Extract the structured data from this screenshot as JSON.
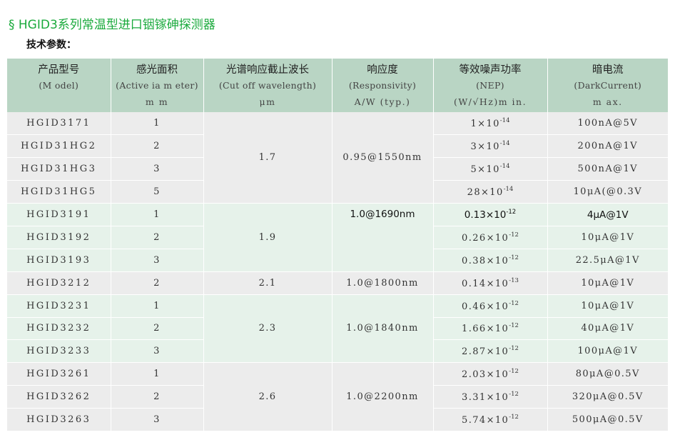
{
  "title": "§ HGID3系列常温型进口铟镓砷探测器",
  "subtitle": "技术参数：",
  "header": {
    "model": [
      "产品型号",
      "(M odel)",
      ""
    ],
    "area": [
      "感光面积",
      "(Active ia m eter)",
      "m m"
    ],
    "cutoff": [
      "光谱响应截止波长",
      "(Cut off wavelength)",
      "μm"
    ],
    "resp": [
      "响应度",
      "(Responsivity)",
      "A/W (typ.)"
    ],
    "nep": [
      "等效噪声功率",
      "(NEP)",
      "(W/√Hz)m in."
    ],
    "dark": [
      "暗电流",
      "(DarkCurrent)",
      "m ax."
    ]
  },
  "rows": [
    {
      "model": "HGID3171",
      "area": "1",
      "nep": "1×10",
      "nep_exp": "-14",
      "dark": "100nA@5V"
    },
    {
      "model": "HGID31HG2",
      "area": "2",
      "nep": "3×10",
      "nep_exp": "-14",
      "dark": "200nA@1V"
    },
    {
      "model": "HGID31HG3",
      "area": "3",
      "nep": "5×10",
      "nep_exp": "-14",
      "dark": "500nA@1V"
    },
    {
      "model": "HGID31HG5",
      "area": "5",
      "nep": "28×10",
      "nep_exp": "-14",
      "dark": "10μA(@0.3V"
    },
    {
      "model": "HGID3191",
      "area": "1",
      "nep": "0.13×10",
      "nep_exp": "-12",
      "dark": "4μA@1V"
    },
    {
      "model": "HGID3192",
      "area": "2",
      "nep": "0.26×10",
      "nep_exp": "-12",
      "dark": "10μA@1V"
    },
    {
      "model": "HGID3193",
      "area": "3",
      "nep": "0.38×10",
      "nep_exp": "-12",
      "dark": "22.5μA@1V"
    },
    {
      "model": "HGID3212",
      "area": "2",
      "nep": "0.14×10",
      "nep_exp": "-13",
      "dark": "10μA@1V"
    },
    {
      "model": "HGID3231",
      "area": "1",
      "nep": "0.46×10",
      "nep_exp": "-12",
      "dark": "10μA@1V"
    },
    {
      "model": "HGID3232",
      "area": "2",
      "nep": "1.66×10",
      "nep_exp": "-12",
      "dark": "40μA@1V"
    },
    {
      "model": "HGID3233",
      "area": "3",
      "nep": "2.87×10",
      "nep_exp": "-12",
      "dark": "100μA@1V"
    },
    {
      "model": "HGID3261",
      "area": "1",
      "nep": "2.03×10",
      "nep_exp": "-12",
      "dark": "80μA@0.5V"
    },
    {
      "model": "HGID3262",
      "area": "2",
      "nep": "3.31×10",
      "nep_exp": "-12",
      "dark": "320μA@0.5V"
    },
    {
      "model": "HGID3263",
      "area": "3",
      "nep": "5.74×10",
      "nep_exp": "-12",
      "dark": "500μA@0.5V"
    }
  ],
  "groups": [
    {
      "cutoff": "1.7",
      "resp": "0.95@1550nm"
    },
    {
      "cutoff": "1.9",
      "resp": "1.0@1690nm"
    },
    {
      "cutoff": "2.1",
      "resp": "1.0@1800nm"
    },
    {
      "cutoff": "2.3",
      "resp": "1.0@1840nm"
    },
    {
      "cutoff": "2.6",
      "resp": "1.0@2200nm"
    }
  ],
  "colors": {
    "title": "#1aaa3c",
    "header_bg": "#b9d5c4",
    "row_gray": "#ececec",
    "row_green": "#e6f2ea"
  }
}
